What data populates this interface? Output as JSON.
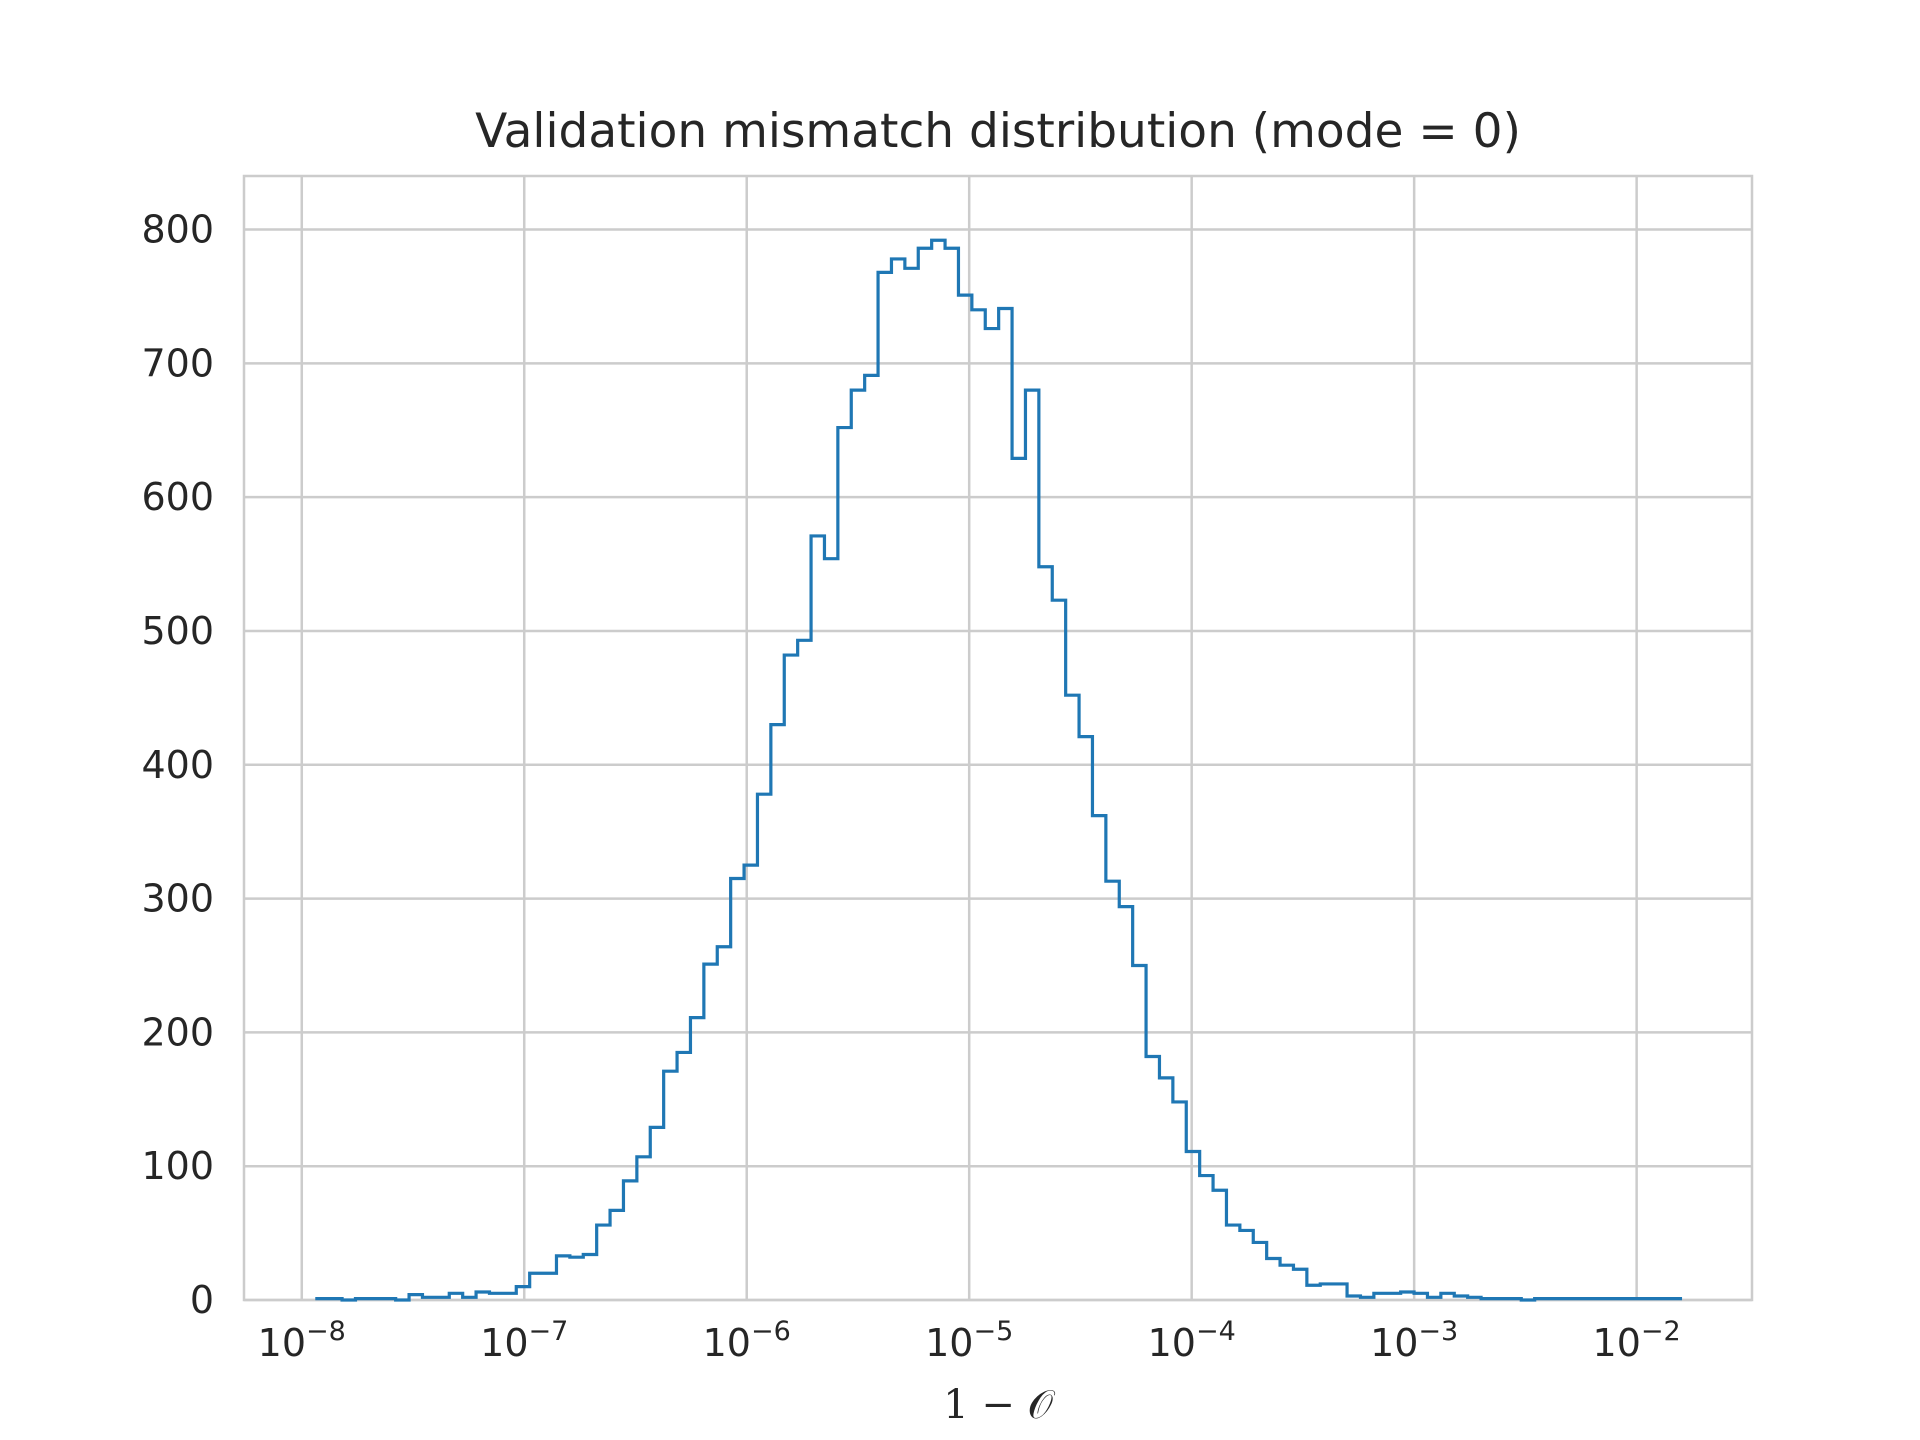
{
  "chart_data": {
    "type": "histogram",
    "title": "Validation mismatch distribution (mode = 0)",
    "xlabel": "1 − 𝒪",
    "ylabel": "",
    "x_scale": "log",
    "xlim": [
      5.5e-09,
      0.033
    ],
    "ylim": [
      0,
      840
    ],
    "grid": true,
    "legend": "none",
    "colors": {
      "series": "#1f77b4",
      "grid": "#cccccc",
      "text": "#262626"
    },
    "x_ticks": [
      {
        "value": 1e-08,
        "base": "10",
        "exp": "−8"
      },
      {
        "value": 1e-07,
        "base": "10",
        "exp": "−7"
      },
      {
        "value": 1e-06,
        "base": "10",
        "exp": "−6"
      },
      {
        "value": 1e-05,
        "base": "10",
        "exp": "−5"
      },
      {
        "value": 0.0001,
        "base": "10",
        "exp": "−4"
      },
      {
        "value": 0.001,
        "base": "10",
        "exp": "−3"
      },
      {
        "value": 0.01,
        "base": "10",
        "exp": "−2"
      }
    ],
    "y_ticks": [
      {
        "value": 0,
        "label": "0"
      },
      {
        "value": 100,
        "label": "100"
      },
      {
        "value": 200,
        "label": "200"
      },
      {
        "value": 300,
        "label": "300"
      },
      {
        "value": 400,
        "label": "400"
      },
      {
        "value": 500,
        "label": "500"
      },
      {
        "value": 600,
        "label": "600"
      },
      {
        "value": 700,
        "label": "700"
      },
      {
        "value": 800,
        "label": "800"
      }
    ],
    "bins_range": [
      1.15e-08,
      0.016
    ],
    "counts": [
      1,
      1,
      0,
      1,
      1,
      1,
      0,
      4,
      2,
      2,
      5,
      2,
      6,
      5,
      5,
      10,
      20,
      20,
      33,
      32,
      34,
      56,
      67,
      89,
      107,
      129,
      171,
      185,
      211,
      251,
      264,
      315,
      325,
      378,
      430,
      482,
      493,
      571,
      554,
      652,
      680,
      691,
      768,
      778,
      771,
      786,
      792,
      786,
      751,
      740,
      726,
      741,
      629,
      680,
      548,
      523,
      452,
      421,
      362,
      313,
      294,
      250,
      182,
      166,
      148,
      111,
      93,
      82,
      56,
      52,
      43,
      31,
      26,
      23,
      11,
      12,
      12,
      3,
      2,
      5,
      5,
      6,
      5,
      2,
      5,
      3,
      2,
      1,
      1,
      1,
      0,
      1,
      1,
      1,
      1,
      1,
      1,
      1,
      1,
      1,
      1,
      1
    ]
  }
}
